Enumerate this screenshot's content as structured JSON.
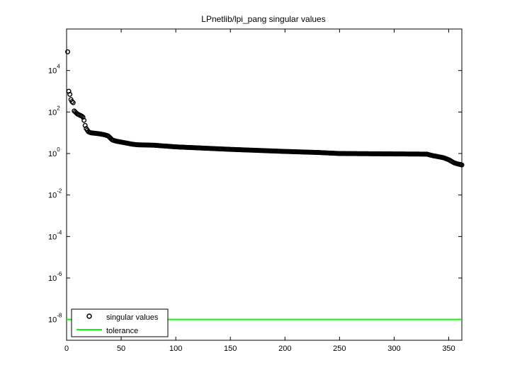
{
  "chart_data": {
    "type": "scatter",
    "title": "LPnetlib/lpi_pang singular values",
    "xlabel": "",
    "ylabel": "",
    "xlim": [
      0,
      362
    ],
    "ylim_log10": [
      -9,
      6
    ],
    "y_scale": "log",
    "grid": false,
    "x_ticks": [
      0,
      50,
      100,
      150,
      200,
      250,
      300,
      350
    ],
    "y_ticks": [
      {
        "exp": -8,
        "base": "10",
        "sup": "-8"
      },
      {
        "exp": -6,
        "base": "10",
        "sup": "-6"
      },
      {
        "exp": -4,
        "base": "10",
        "sup": "-4"
      },
      {
        "exp": -2,
        "base": "10",
        "sup": "-2"
      },
      {
        "exp": 0,
        "base": "10",
        "sup": "0"
      },
      {
        "exp": 2,
        "base": "10",
        "sup": "2"
      },
      {
        "exp": 4,
        "base": "10",
        "sup": "4"
      }
    ],
    "legend": {
      "position": "bottom-left",
      "entries": [
        {
          "label": "singular values",
          "marker": "circle",
          "color": "#000000"
        },
        {
          "label": "tolerance",
          "marker": "line",
          "color": "#00ff00"
        }
      ]
    },
    "series": [
      {
        "name": "singular values",
        "style": "circle",
        "color": "#000000",
        "curve_log10": [
          [
            1,
            4.9
          ],
          [
            2,
            3.0
          ],
          [
            3,
            2.85
          ],
          [
            4,
            2.6
          ],
          [
            5,
            2.5
          ],
          [
            6,
            2.45
          ],
          [
            7,
            2.05
          ],
          [
            8,
            2.0
          ],
          [
            9,
            1.95
          ],
          [
            10,
            1.9
          ],
          [
            12,
            1.85
          ],
          [
            14,
            1.8
          ],
          [
            15,
            1.75
          ],
          [
            16,
            1.6
          ],
          [
            17,
            1.35
          ],
          [
            18,
            1.2
          ],
          [
            20,
            1.05
          ],
          [
            22,
            1.0
          ],
          [
            30,
            0.95
          ],
          [
            35,
            0.9
          ],
          [
            38,
            0.85
          ],
          [
            40,
            0.75
          ],
          [
            42,
            0.65
          ],
          [
            45,
            0.6
          ],
          [
            50,
            0.55
          ],
          [
            55,
            0.5
          ],
          [
            60,
            0.45
          ],
          [
            65,
            0.42
          ],
          [
            80,
            0.4
          ],
          [
            100,
            0.32
          ],
          [
            150,
            0.2
          ],
          [
            200,
            0.1
          ],
          [
            230,
            0.05
          ],
          [
            250,
            0.0
          ],
          [
            300,
            -0.02
          ],
          [
            330,
            -0.03
          ],
          [
            335,
            -0.1
          ],
          [
            340,
            -0.15
          ],
          [
            345,
            -0.2
          ],
          [
            350,
            -0.3
          ],
          [
            355,
            -0.45
          ],
          [
            358,
            -0.5
          ],
          [
            362,
            -0.55
          ]
        ]
      },
      {
        "name": "tolerance",
        "style": "line",
        "color": "#00ff00",
        "y_log10": -8.0
      }
    ]
  }
}
